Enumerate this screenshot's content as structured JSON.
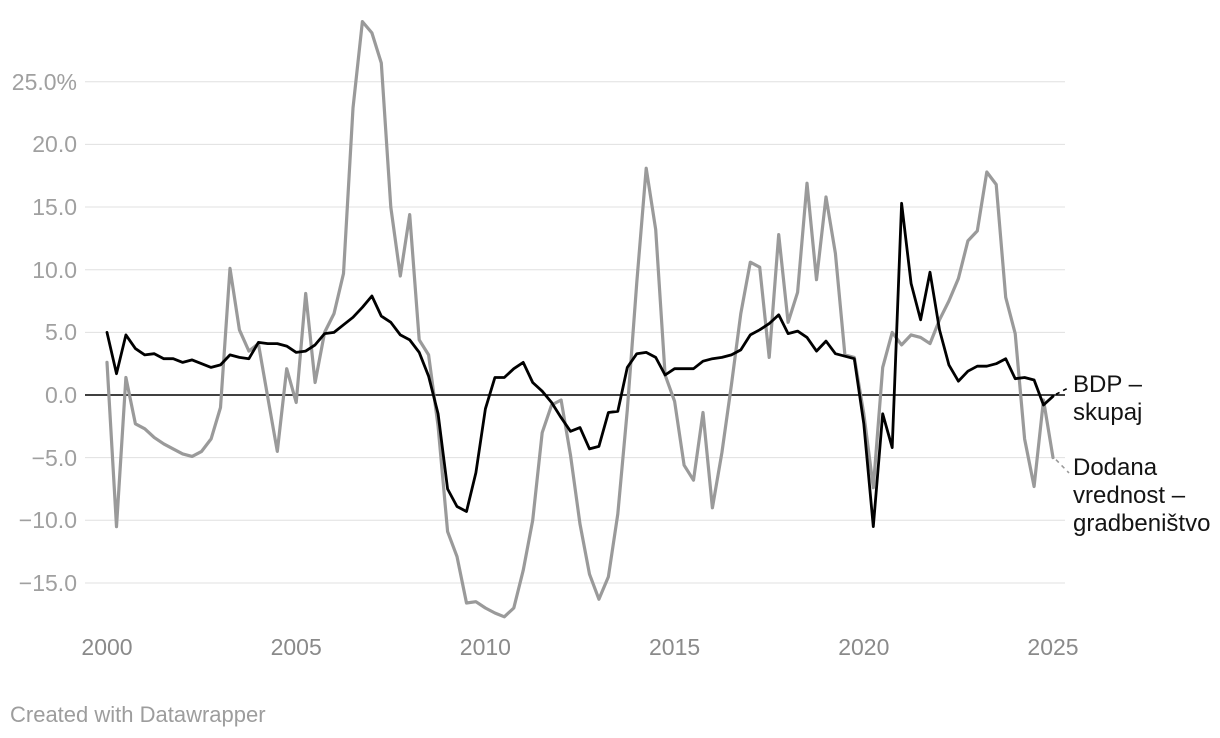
{
  "chart_data": {
    "type": "line",
    "title": "",
    "x_unit": "quarter",
    "x_start": "2000Q1",
    "x_end": "2025Q1",
    "frequency": "quarterly",
    "x_ticks": [
      2000,
      2005,
      2010,
      2015,
      2020,
      2025
    ],
    "x_tick_labels": [
      "2000",
      "2005",
      "2010",
      "2015",
      "2020",
      "2025"
    ],
    "y_ticks": [
      25,
      20,
      15,
      10,
      5,
      0,
      -5,
      -10,
      -15
    ],
    "y_tick_labels": [
      "25.0%",
      "20.0",
      "15.0",
      "10.0",
      "5.0",
      "0.0",
      "−5.0",
      "−10.0",
      "−15.0"
    ],
    "ylim": [
      -18.6,
      30.7
    ],
    "grid": true,
    "grid_color": "#e0e0e0",
    "zero_line_color": "#000000",
    "axis_label_color_y": "#a0a0a0",
    "axis_label_color_x": "#8a8a8a",
    "legend_position": "right",
    "series": [
      {
        "name": "BDP – skupaj",
        "color": "#000000",
        "stroke_width": 2.8,
        "values": [
          5.0,
          1.7,
          4.8,
          3.7,
          3.2,
          3.3,
          2.9,
          2.9,
          2.6,
          2.8,
          2.5,
          2.2,
          2.4,
          3.2,
          3.0,
          2.9,
          4.2,
          4.1,
          4.1,
          3.9,
          3.4,
          3.5,
          4.0,
          4.9,
          5.0,
          5.6,
          6.2,
          7.0,
          7.9,
          6.3,
          5.8,
          4.8,
          4.4,
          3.4,
          1.5,
          -1.5,
          -7.5,
          -8.9,
          -9.3,
          -6.2,
          -1.1,
          1.4,
          1.4,
          2.1,
          2.6,
          1.0,
          0.3,
          -0.6,
          -1.8,
          -2.9,
          -2.6,
          -4.3,
          -4.1,
          -1.4,
          -1.3,
          2.2,
          3.3,
          3.4,
          3.0,
          1.6,
          2.1,
          2.1,
          2.1,
          2.7,
          2.9,
          3.0,
          3.2,
          3.6,
          4.8,
          5.2,
          5.7,
          6.4,
          4.9,
          5.1,
          4.6,
          3.5,
          4.3,
          3.3,
          3.1,
          2.9,
          -2.3,
          -10.5,
          -1.5,
          -4.2,
          15.3,
          8.9,
          6.0,
          9.8,
          5.2,
          2.4,
          1.1,
          1.9,
          2.3,
          2.3,
          2.5,
          2.9,
          1.3,
          1.4,
          1.2,
          -0.8,
          -0.1
        ]
      },
      {
        "name": "Dodana vrednost – gradbeništvo",
        "color": "#9a9a9a",
        "stroke_width": 3.2,
        "values": [
          2.6,
          -10.5,
          1.4,
          -2.3,
          -2.7,
          -3.4,
          -3.9,
          -4.3,
          -4.7,
          -4.9,
          -4.5,
          -3.5,
          -1.0,
          10.1,
          5.2,
          3.5,
          4.1,
          -0.2,
          -4.5,
          2.1,
          -0.6,
          8.1,
          1.0,
          5.0,
          6.5,
          9.7,
          22.9,
          29.8,
          28.9,
          26.5,
          15.0,
          9.5,
          14.4,
          4.4,
          3.2,
          -2.5,
          -10.9,
          -12.9,
          -16.6,
          -16.5,
          -17.0,
          -17.4,
          -17.7,
          -17.0,
          -14.0,
          -10.0,
          -3.0,
          -0.8,
          -0.4,
          -4.8,
          -10.3,
          -14.3,
          -16.3,
          -14.5,
          -9.5,
          -1.2,
          9.0,
          18.1,
          13.2,
          1.6,
          -0.5,
          -5.6,
          -6.8,
          -1.4,
          -9.0,
          -4.6,
          0.8,
          6.5,
          10.6,
          10.2,
          3.0,
          12.8,
          5.8,
          8.2,
          16.9,
          9.2,
          15.8,
          11.3,
          3.2,
          3.0,
          -1.5,
          -7.4,
          2.2,
          5.0,
          4.0,
          4.8,
          4.6,
          4.1,
          6.0,
          7.5,
          9.3,
          12.3,
          13.1,
          17.8,
          16.8,
          7.8,
          4.9,
          -3.5,
          -7.3,
          -0.4,
          -5.0
        ]
      }
    ]
  },
  "legend": {
    "entries": [
      {
        "label": "BDP –\nskupaj"
      },
      {
        "label": "Dodana\nvrednost –\ngradbeništvo"
      }
    ]
  },
  "footer": {
    "credit": "Created with Datawrapper"
  }
}
